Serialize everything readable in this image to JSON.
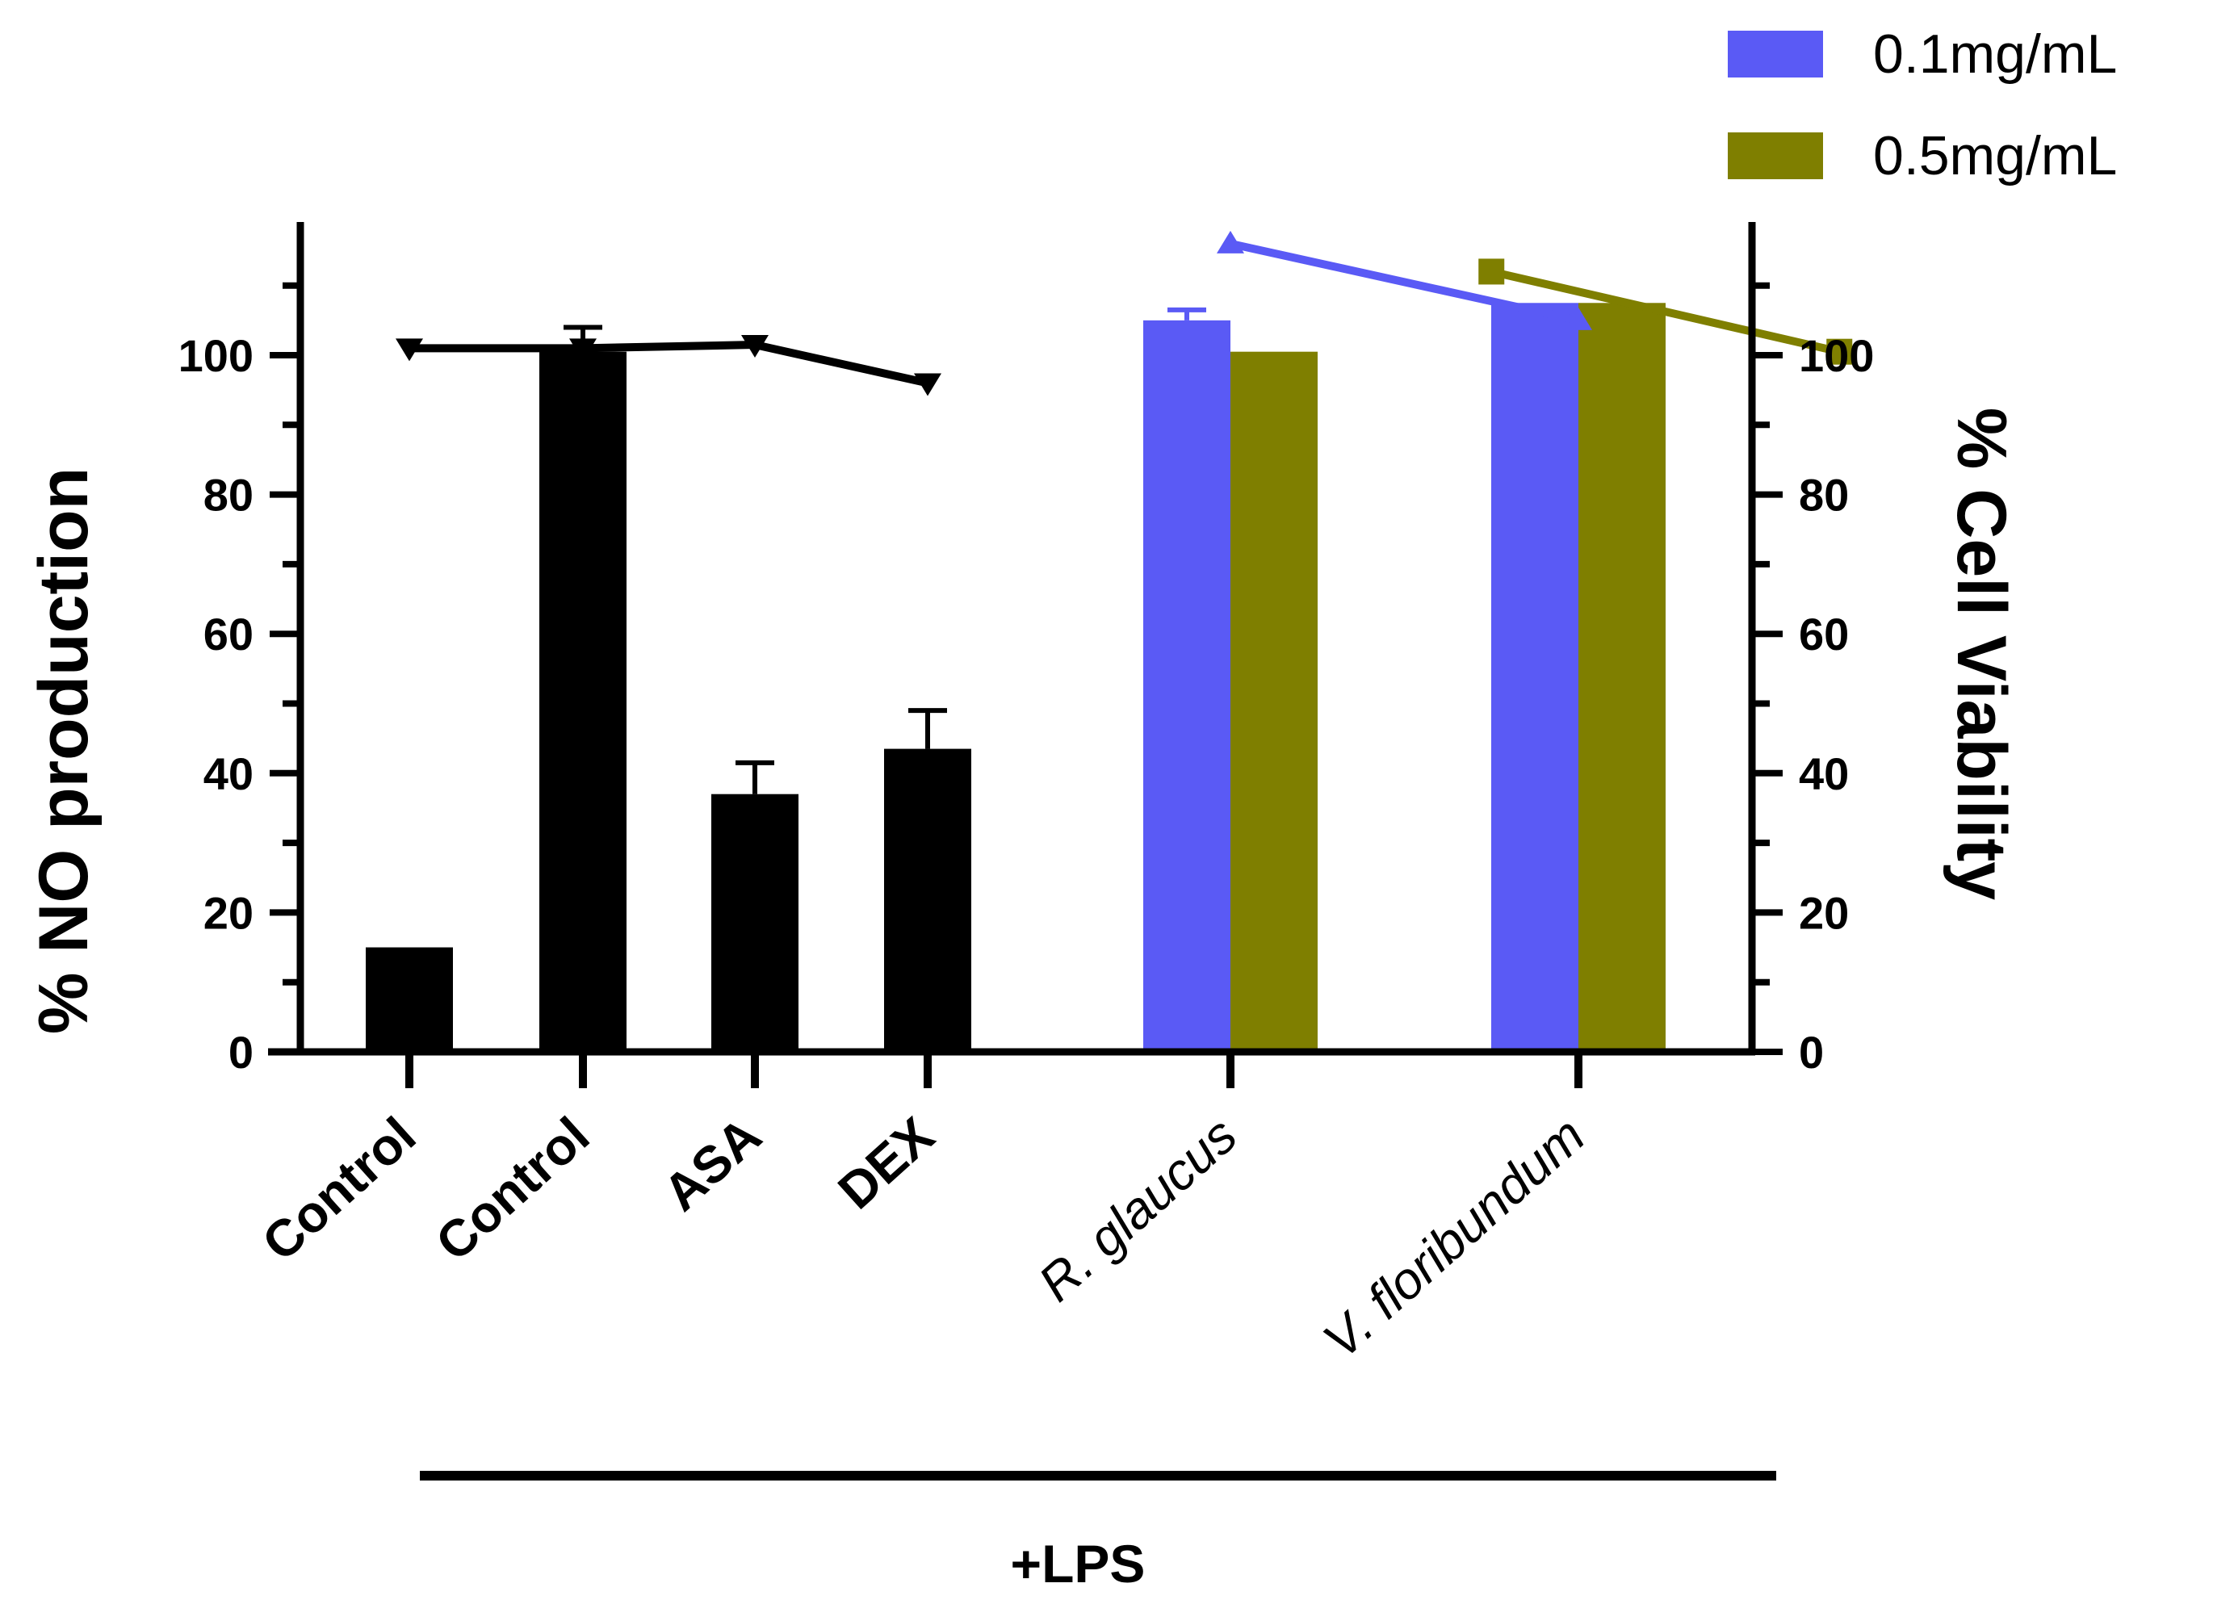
{
  "chart_data": {
    "type": "bar",
    "title": "",
    "ylabel": "% NO production",
    "y2label": "% Cell Viability",
    "ylim": [
      0,
      120
    ],
    "y2lim": [
      0,
      120
    ],
    "yticks": [
      0,
      20,
      40,
      60,
      80,
      100
    ],
    "y2ticks": [
      0,
      20,
      40,
      60,
      80,
      100
    ],
    "categories": [
      {
        "label": "Control",
        "style": "bold"
      },
      {
        "label": "Control",
        "style": "bold"
      },
      {
        "label": "ASA",
        "style": "bold"
      },
      {
        "label": "DEX",
        "style": "bold"
      },
      {
        "label": "R. glaucus",
        "style": "italic"
      },
      {
        "label": "V. floribundum",
        "style": "italic"
      }
    ],
    "group_label": "+LPS",
    "colors": {
      "control": "#000000",
      "low": "#5a5af5",
      "high": "#7f7f00"
    },
    "legend": [
      {
        "name": "0.1mg/mL",
        "color": "#5a5af5"
      },
      {
        "name": "0.5mg/mL",
        "color": "#7f7f00"
      }
    ],
    "bars": [
      {
        "category": 0,
        "series": "control",
        "value": 15,
        "error": 0
      },
      {
        "category": 1,
        "series": "control",
        "value": 100.5,
        "error": 3.5
      },
      {
        "category": 2,
        "series": "control",
        "value": 37,
        "error": 4.5
      },
      {
        "category": 3,
        "series": "control",
        "value": 43.5,
        "error": 5.5
      },
      {
        "category": 4,
        "series": "low",
        "value": 105,
        "error": 1.5
      },
      {
        "category": 4,
        "series": "high",
        "value": 100.5,
        "error": 0
      },
      {
        "category": 5,
        "series": "low",
        "value": 107.5,
        "error": 0
      },
      {
        "category": 5,
        "series": "high",
        "value": 107.5,
        "error": 0
      }
    ],
    "viability_lines": [
      {
        "name": "control",
        "color": "#000000",
        "marker": "triangle-down",
        "points": [
          [
            0,
            101
          ],
          [
            1,
            101
          ],
          [
            2,
            101.5
          ],
          [
            3,
            96
          ]
        ]
      },
      {
        "name": "0.1mg/mL",
        "color": "#5a5af5",
        "marker": "triangle-up",
        "points": [
          [
            4,
            116
          ],
          [
            5,
            105
          ]
        ]
      },
      {
        "name": "0.5mg/mL",
        "color": "#7f7f00",
        "marker": "square",
        "points": [
          [
            4.75,
            112
          ],
          [
            5.75,
            100.5
          ]
        ]
      }
    ]
  }
}
